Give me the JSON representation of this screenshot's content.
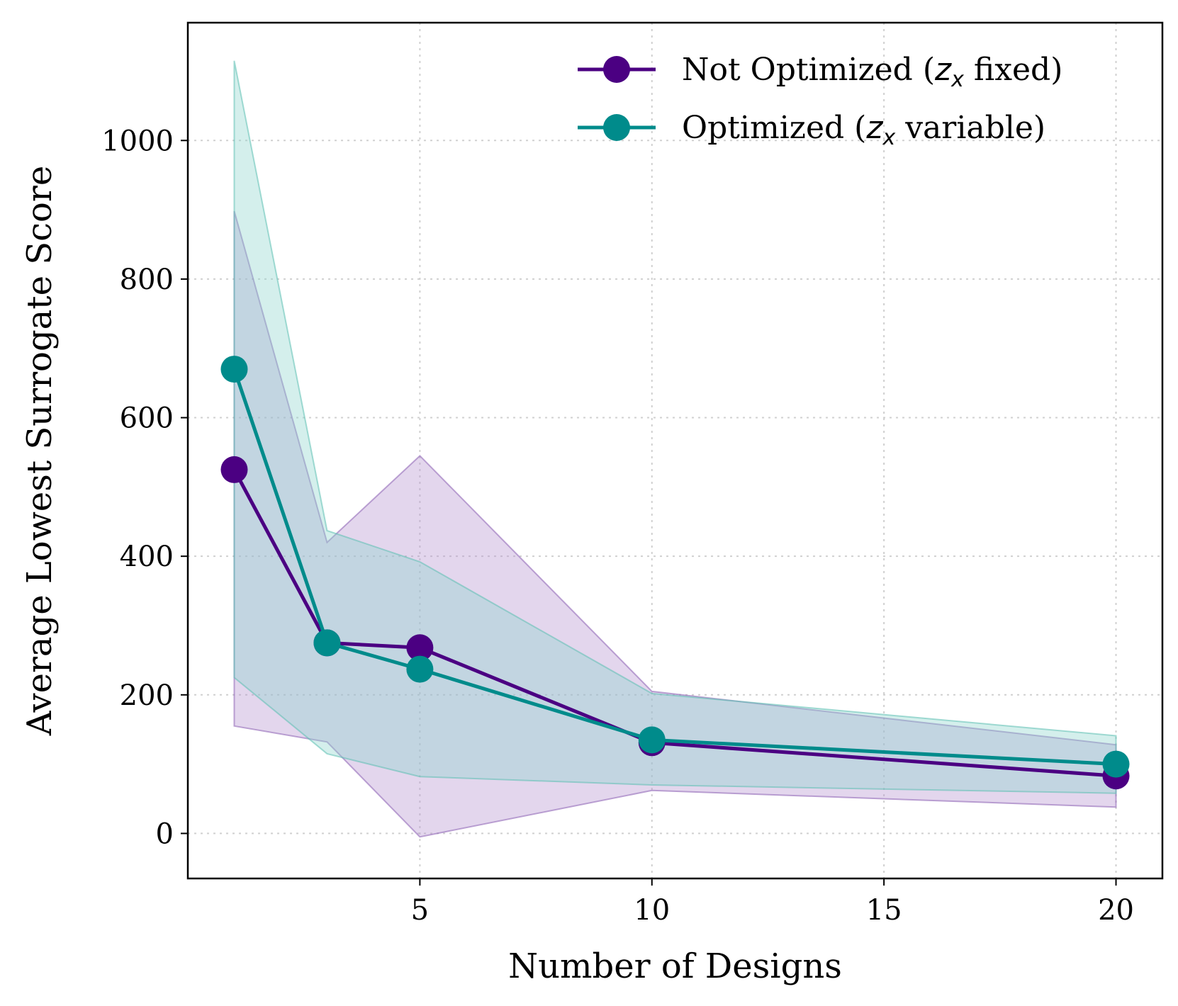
{
  "chart_data": {
    "type": "line",
    "xlabel": "Number of Designs",
    "ylabel": "Average Lowest Surrogate Score",
    "xlim": [
      0,
      21
    ],
    "ylim": [
      -65,
      1170
    ],
    "xticks": [
      5,
      10,
      15,
      20
    ],
    "yticks": [
      0,
      200,
      400,
      600,
      800,
      1000
    ],
    "grid": true,
    "grid_style": "dotted",
    "legend_position": "top-right",
    "x": [
      1,
      3,
      5,
      10,
      20
    ],
    "series": [
      {
        "name": "Not Optimized (z_x fixed)",
        "label_prefix": "Not Optimized (",
        "label_var": "z",
        "label_sub": "x",
        "label_suffix": " fixed)",
        "color": "#4b0082",
        "values": [
          525,
          275,
          268,
          131,
          83
        ],
        "band_upper": [
          898,
          420,
          545,
          205,
          128
        ],
        "band_lower": [
          155,
          132,
          -5,
          62,
          38
        ]
      },
      {
        "name": "Optimized (z_x variable)",
        "label_prefix": "Optimized (",
        "label_var": "z",
        "label_sub": "x",
        "label_suffix": " variable)",
        "color": "#008b8b",
        "values": [
          670,
          275,
          237,
          135,
          100
        ],
        "band_upper": [
          1115,
          437,
          392,
          202,
          141
        ],
        "band_lower": [
          225,
          115,
          82,
          70,
          58
        ]
      }
    ]
  }
}
